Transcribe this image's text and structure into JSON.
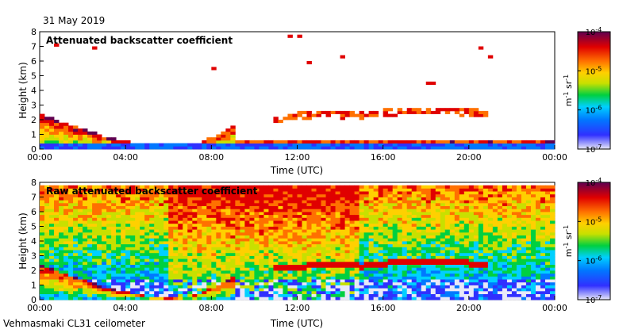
{
  "header": {
    "date": "31 May 2019"
  },
  "footer": {
    "instrument": "Vehmasmaki CL31 ceilometer"
  },
  "colors": {
    "scale": [
      "#e8e8f8",
      "#3030ff",
      "#0078ff",
      "#00d0ff",
      "#00d040",
      "#c8e000",
      "#ffd000",
      "#ff7000",
      "#e00000",
      "#600050"
    ]
  },
  "chart_data": [
    {
      "type": "heatmap",
      "title": "Attenuated backscatter coefficient",
      "xlabel": "Time (UTC)",
      "ylabel": "Height (km)",
      "xlim": [
        "00:00",
        "24:00"
      ],
      "ylim": [
        0,
        8
      ],
      "x_ticks": [
        "00:00",
        "04:00",
        "08:00",
        "12:00",
        "16:00",
        "20:00",
        "00:00"
      ],
      "y_ticks": [
        "0",
        "1",
        "2",
        "3",
        "4",
        "5",
        "6",
        "7",
        "8"
      ],
      "colorbar": {
        "unit": "m-1 sr-1",
        "scale": "log",
        "ticks": [
          "10-7",
          "10-6",
          "10-5",
          "10-4"
        ]
      },
      "features": {
        "boundary_layer_top_km": {
          "hours": [
            0,
            1,
            2,
            3,
            4,
            5,
            6,
            7,
            8,
            9
          ],
          "values": [
            2.5,
            1.9,
            1.4,
            0.9,
            0.55,
            0.3,
            0.1,
            0.25,
            0.8,
            1.6
          ]
        },
        "cloud_layer": {
          "hours": [
            11,
            13,
            15,
            17,
            19,
            21
          ],
          "values": [
            2.1,
            2.4,
            2.3,
            2.6,
            2.6,
            2.4
          ]
        }
      }
    },
    {
      "type": "heatmap",
      "title": "Raw attenuated backscatter coefficient",
      "xlabel": "Time (UTC)",
      "ylabel": "Height (km)",
      "xlim": [
        "00:00",
        "24:00"
      ],
      "ylim": [
        0,
        8
      ],
      "x_ticks": [
        "00:00",
        "04:00",
        "08:00",
        "12:00",
        "16:00",
        "20:00",
        "00:00"
      ],
      "y_ticks": [
        "0",
        "1",
        "2",
        "3",
        "4",
        "5",
        "6",
        "7",
        "8"
      ],
      "colorbar": {
        "unit": "m-1 sr-1",
        "scale": "log",
        "ticks": [
          "10-7",
          "10-6",
          "10-5",
          "10-4"
        ]
      }
    }
  ]
}
